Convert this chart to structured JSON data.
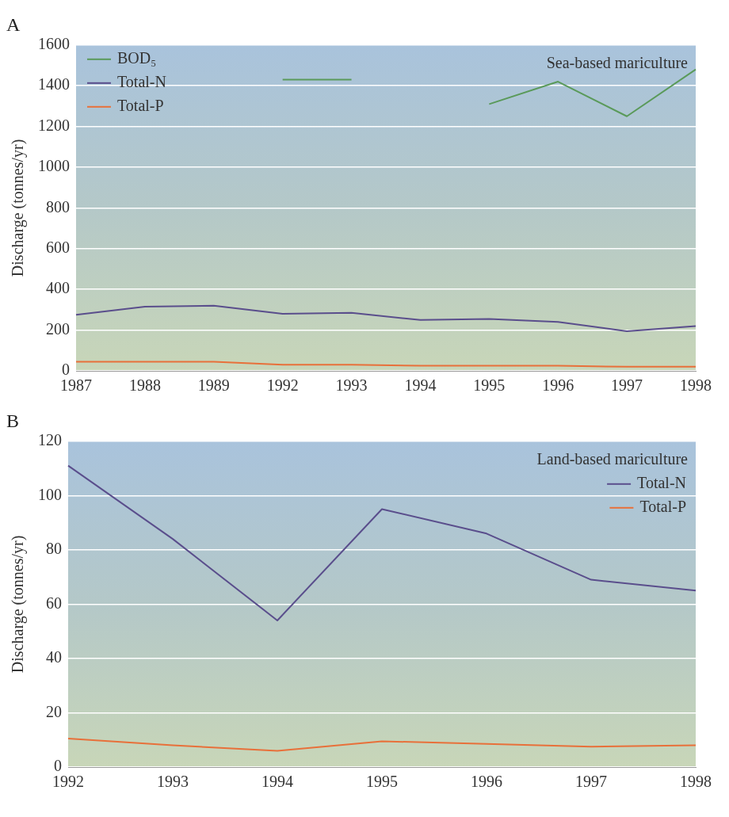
{
  "chart_data": [
    {
      "type": "line",
      "title": "A",
      "ylabel": "Discharge (tonnes/yr)",
      "annotations": [
        "Sea-based mariculture"
      ],
      "categories": [
        "1987",
        "1988",
        "1989",
        "1992",
        "1993",
        "1994",
        "1995",
        "1996",
        "1997",
        "1998"
      ],
      "series": [
        {
          "name": "BOD₅",
          "color": "#5a9a5a",
          "values": [
            null,
            null,
            null,
            1430,
            1430,
            null,
            1310,
            1420,
            1250,
            1480
          ]
        },
        {
          "name": "Total-N",
          "color": "#5a4e8c",
          "values": [
            275,
            315,
            320,
            280,
            285,
            250,
            255,
            240,
            195,
            220
          ]
        },
        {
          "name": "Total-P",
          "color": "#e8703a",
          "values": [
            45,
            45,
            45,
            30,
            30,
            25,
            25,
            25,
            20,
            20
          ]
        }
      ],
      "ylim": [
        0,
        1600
      ],
      "yticks": [
        0,
        200,
        400,
        600,
        800,
        1000,
        1200,
        1400,
        1600
      ],
      "grid": "y",
      "legend": "top left",
      "marker": "none",
      "line_style": "solid"
    },
    {
      "type": "line",
      "title": "B",
      "ylabel": "Discharge (tonnes/yr)",
      "annotations": [
        "Land-based mariculture"
      ],
      "categories": [
        "1992",
        "1993",
        "1994",
        "1995",
        "1996",
        "1997",
        "1998"
      ],
      "series": [
        {
          "name": "Total-N",
          "color": "#5a4e8c",
          "values": [
            111,
            84,
            54,
            95,
            86,
            69,
            65
          ]
        },
        {
          "name": "Total-P",
          "color": "#e8703a",
          "values": [
            10.5,
            8,
            6,
            9.5,
            8.5,
            7.5,
            8
          ]
        }
      ],
      "ylim": [
        0,
        120
      ],
      "yticks": [
        0,
        20,
        40,
        60,
        80,
        100,
        120
      ],
      "grid": "y",
      "legend": "top right",
      "marker": "none",
      "line_style": "solid"
    }
  ]
}
